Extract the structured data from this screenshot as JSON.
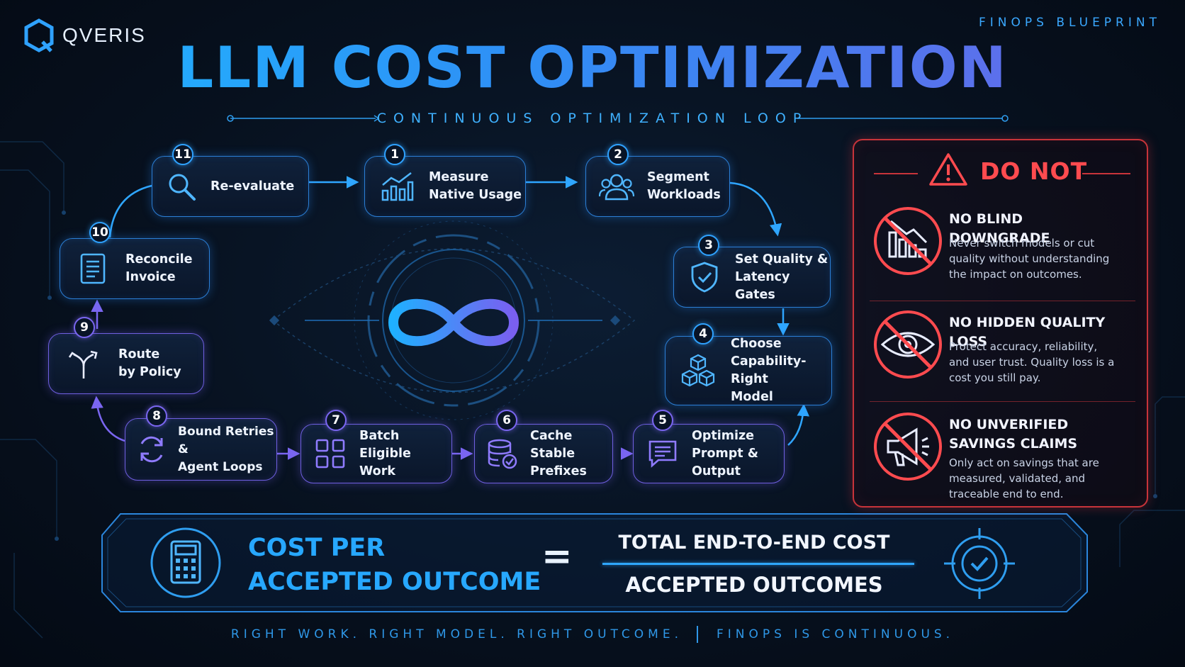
{
  "brand": {
    "logo_text": "QVERIS",
    "tag": "FINOPS BLUEPRINT"
  },
  "title": "LLM COST OPTIMIZATION",
  "subtitle": "CONTINUOUS OPTIMIZATION LOOP",
  "steps": [
    {
      "num": "1",
      "label": "Measure\nNative Usage",
      "icon": "chart-growth-icon"
    },
    {
      "num": "2",
      "label": "Segment\nWorkloads",
      "icon": "users-group-icon"
    },
    {
      "num": "3",
      "label": "Set Quality &\nLatency Gates",
      "icon": "shield-check-icon"
    },
    {
      "num": "4",
      "label": "Choose\nCapability-Right\nModel",
      "icon": "cubes-icon"
    },
    {
      "num": "5",
      "label": "Optimize\nPrompt & Output",
      "icon": "chat-lines-icon"
    },
    {
      "num": "6",
      "label": "Cache Stable\nPrefixes",
      "icon": "database-check-icon"
    },
    {
      "num": "7",
      "label": "Batch Eligible\nWork",
      "icon": "grid-squares-icon"
    },
    {
      "num": "8",
      "label": "Bound Retries &\nAgent Loops",
      "icon": "refresh-icon"
    },
    {
      "num": "9",
      "label": "Route\nby Policy",
      "icon": "route-split-icon"
    },
    {
      "num": "10",
      "label": "Reconcile\nInvoice",
      "icon": "invoice-icon"
    },
    {
      "num": "11",
      "label": "Re-evaluate",
      "icon": "search-icon"
    }
  ],
  "center": {
    "icon": "infinity-icon"
  },
  "donot": {
    "title": "DO NOT",
    "items": [
      {
        "heading": "NO BLIND DOWNGRADE",
        "text": "Never switch models or cut quality without understanding the impact on outcomes.",
        "icon": "no-downgrade-icon"
      },
      {
        "heading": "NO HIDDEN QUALITY LOSS",
        "text": "Protect accuracy, reliability, and user trust. Quality loss is a cost you still pay.",
        "icon": "no-eye-icon"
      },
      {
        "heading": "NO UNVERIFIED SAVINGS CLAIMS",
        "text": "Only act on savings that are measured, validated, and traceable end to end.",
        "icon": "no-megaphone-icon"
      }
    ]
  },
  "formula": {
    "left": "COST PER\nACCEPTED OUTCOME",
    "equals": "=",
    "numerator": "TOTAL END-TO-END COST",
    "denominator": "ACCEPTED OUTCOMES"
  },
  "footer": {
    "left": "RIGHT WORK. RIGHT MODEL. RIGHT OUTCOME.",
    "right": "FINOPS IS CONTINUOUS."
  },
  "colors": {
    "accent_blue": "#2fa2ff",
    "accent_violet": "#7a66f0",
    "warning_red": "#ff4b4f"
  }
}
